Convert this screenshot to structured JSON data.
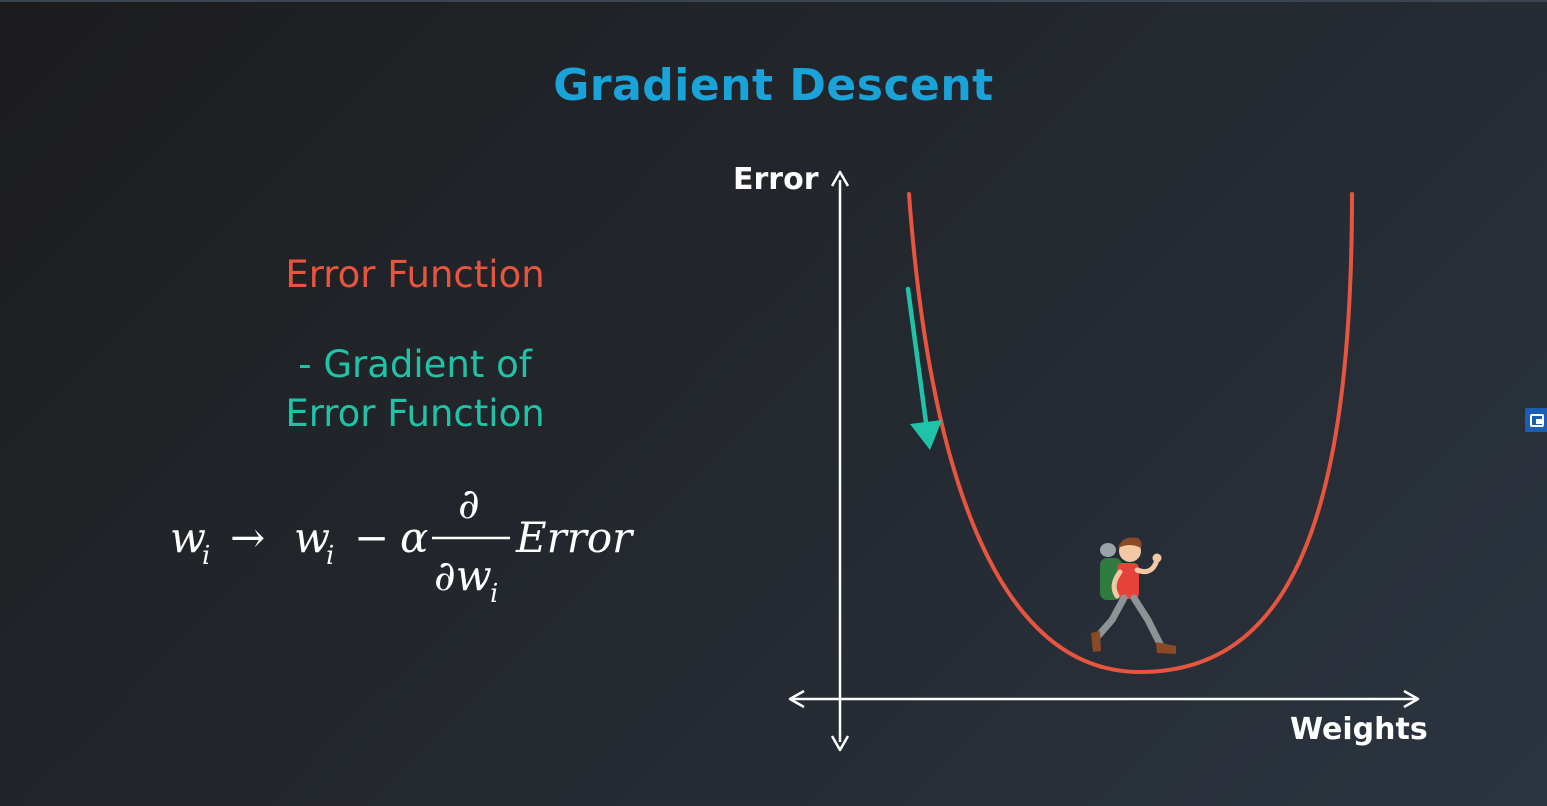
{
  "slide": {
    "title": "Gradient Descent",
    "error_function_label": "Error Function",
    "gradient_line1": "- Gradient of",
    "gradient_line2": "Error Function",
    "formula": {
      "lhs": "w",
      "lhs_sub": "i",
      "arrow": "→",
      "rhs_w": "w",
      "rhs_sub": "i",
      "minus": "−",
      "alpha": "α",
      "partial_num": "∂",
      "partial_den": "∂w",
      "partial_den_sub": "i",
      "error_word": "Error"
    }
  },
  "diagram": {
    "y_axis_label": "Error",
    "x_axis_label": "Weights",
    "curve_color": "#e8553f",
    "arrow_color": "#1fc4a8",
    "axis_color": "#ffffff",
    "character_icon": "hiker-with-backpack-icon"
  },
  "overlay": {
    "side_badge_icon": "picture-in-picture-icon"
  }
}
